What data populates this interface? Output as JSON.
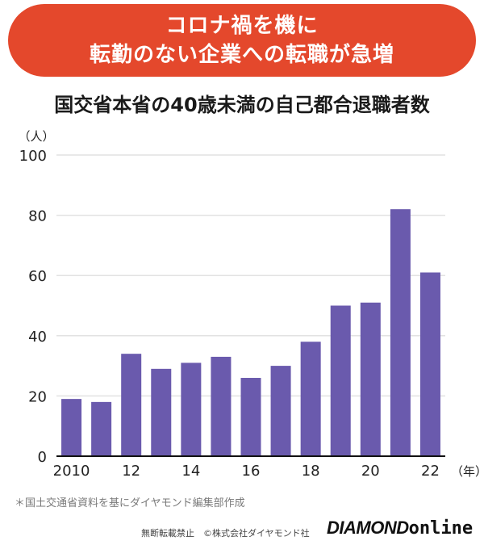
{
  "banner": {
    "line1": "コロナ禍を機に",
    "line2": "転勤のない企業への転職が急増"
  },
  "colors": {
    "banner_bg": "#e4482c",
    "bar": "#6a5aad",
    "grid": "#e2e2e2"
  },
  "chart_data": {
    "type": "bar",
    "title": "国交省本省の40歳未満の自己都合退職者数",
    "ylabel": "（人）",
    "xlabel": "（年）",
    "ylim": [
      0,
      100
    ],
    "yticks": [
      0,
      20,
      40,
      60,
      80,
      100
    ],
    "categories": [
      "2010",
      "11",
      "12",
      "13",
      "14",
      "15",
      "16",
      "17",
      "18",
      "19",
      "20",
      "21",
      "22"
    ],
    "visible_x_tick_labels": [
      "2010",
      "12",
      "14",
      "16",
      "18",
      "20",
      "22"
    ],
    "values": [
      19,
      18,
      34,
      29,
      31,
      33,
      26,
      30,
      38,
      50,
      51,
      82,
      61
    ],
    "grid": true
  },
  "source": "＊国土交通省資料を基にダイヤモンド編集部作成",
  "footer": {
    "copyright": "無断転載禁止　©株式会社ダイヤモンド社",
    "brand_part1": "DIAMOND",
    "brand_part2": "online"
  }
}
